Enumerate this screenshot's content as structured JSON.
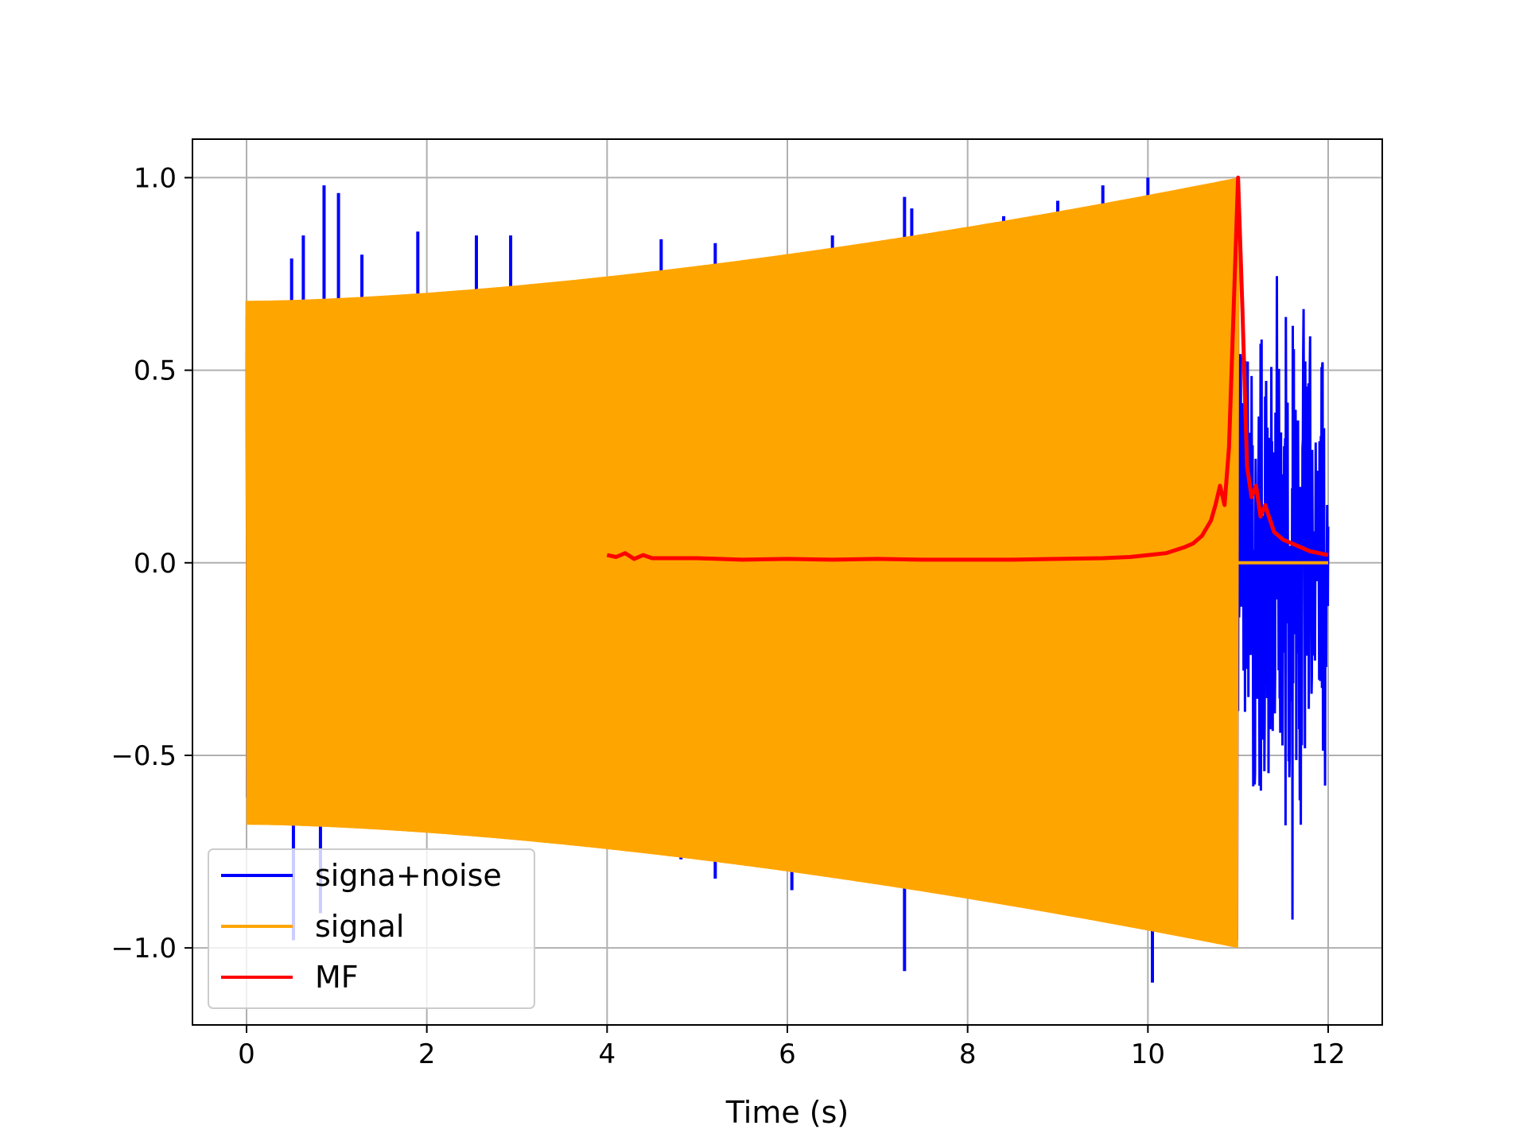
{
  "chart_data": {
    "type": "line",
    "title": "",
    "xlabel": "Time (s)",
    "ylabel": "",
    "xlim": [
      -0.6,
      12.6
    ],
    "ylim": [
      -1.2,
      1.1
    ],
    "x_ticks": [
      0,
      2,
      4,
      6,
      8,
      10,
      12
    ],
    "x_tick_labels": [
      "0",
      "2",
      "4",
      "6",
      "8",
      "10",
      "12"
    ],
    "y_ticks": [
      -1.0,
      -0.5,
      0.0,
      0.5,
      1.0
    ],
    "y_tick_labels": [
      "−1.0",
      "−0.5",
      "0.0",
      "0.5",
      "1.0"
    ],
    "grid": true,
    "legend_position": "lower-left",
    "series": [
      {
        "name": "signa+noise",
        "color": "#0000ff",
        "x_range": [
          0,
          12
        ],
        "envelope_main": {
          "x": [
            0,
            11
          ],
          "amplitude": [
            0.68,
            1.0
          ]
        },
        "noise_after_signal": {
          "x": [
            11,
            12
          ],
          "amplitude": 0.72
        },
        "spikes": [
          {
            "x": 0.5,
            "y": 0.79
          },
          {
            "x": 0.63,
            "y": 0.85
          },
          {
            "x": 0.86,
            "y": 0.98
          },
          {
            "x": 1.02,
            "y": 0.96
          },
          {
            "x": 1.28,
            "y": 0.8
          },
          {
            "x": 1.9,
            "y": 0.86
          },
          {
            "x": 2.55,
            "y": 0.85
          },
          {
            "x": 2.93,
            "y": 0.85
          },
          {
            "x": 4.6,
            "y": 0.84
          },
          {
            "x": 5.2,
            "y": 0.83
          },
          {
            "x": 6.5,
            "y": 0.85
          },
          {
            "x": 7.3,
            "y": 0.95
          },
          {
            "x": 7.38,
            "y": 0.92
          },
          {
            "x": 7.6,
            "y": 0.85
          },
          {
            "x": 8.4,
            "y": 0.9
          },
          {
            "x": 9.0,
            "y": 0.94
          },
          {
            "x": 9.5,
            "y": 0.98
          },
          {
            "x": 10.0,
            "y": 1.0
          },
          {
            "x": 0.52,
            "y": -0.98
          },
          {
            "x": 0.82,
            "y": -0.91
          },
          {
            "x": 4.82,
            "y": -0.77
          },
          {
            "x": 5.2,
            "y": -0.82
          },
          {
            "x": 6.05,
            "y": -0.85
          },
          {
            "x": 7.3,
            "y": -1.06
          },
          {
            "x": 9.4,
            "y": -0.88
          },
          {
            "x": 10.05,
            "y": -1.09
          },
          {
            "x": 8.25,
            "y": -0.85
          }
        ]
      },
      {
        "name": "signal",
        "color": "#ffa500",
        "x_range": [
          0,
          12
        ],
        "envelope": {
          "x": [
            0,
            11
          ],
          "amplitude": [
            0.68,
            1.0
          ]
        },
        "flat_after": {
          "x": [
            11,
            12
          ],
          "value": 0.0
        }
      },
      {
        "name": "MF",
        "color": "#ff0000",
        "x": [
          4.0,
          4.1,
          4.2,
          4.3,
          4.4,
          4.5,
          5.0,
          5.5,
          6.0,
          6.5,
          7.0,
          7.5,
          8.0,
          8.5,
          9.0,
          9.5,
          9.8,
          10.0,
          10.2,
          10.4,
          10.5,
          10.6,
          10.7,
          10.75,
          10.8,
          10.85,
          10.9,
          10.95,
          11.0,
          11.05,
          11.1,
          11.15,
          11.2,
          11.25,
          11.3,
          11.4,
          11.5,
          11.6,
          11.7,
          11.8,
          11.9,
          12.0
        ],
        "y": [
          0.02,
          0.015,
          0.025,
          0.01,
          0.02,
          0.012,
          0.012,
          0.008,
          0.01,
          0.008,
          0.01,
          0.008,
          0.008,
          0.008,
          0.01,
          0.012,
          0.015,
          0.02,
          0.025,
          0.04,
          0.05,
          0.07,
          0.11,
          0.15,
          0.2,
          0.15,
          0.3,
          0.65,
          1.0,
          0.65,
          0.25,
          0.17,
          0.2,
          0.12,
          0.15,
          0.08,
          0.06,
          0.05,
          0.04,
          0.03,
          0.025,
          0.02
        ]
      }
    ]
  }
}
